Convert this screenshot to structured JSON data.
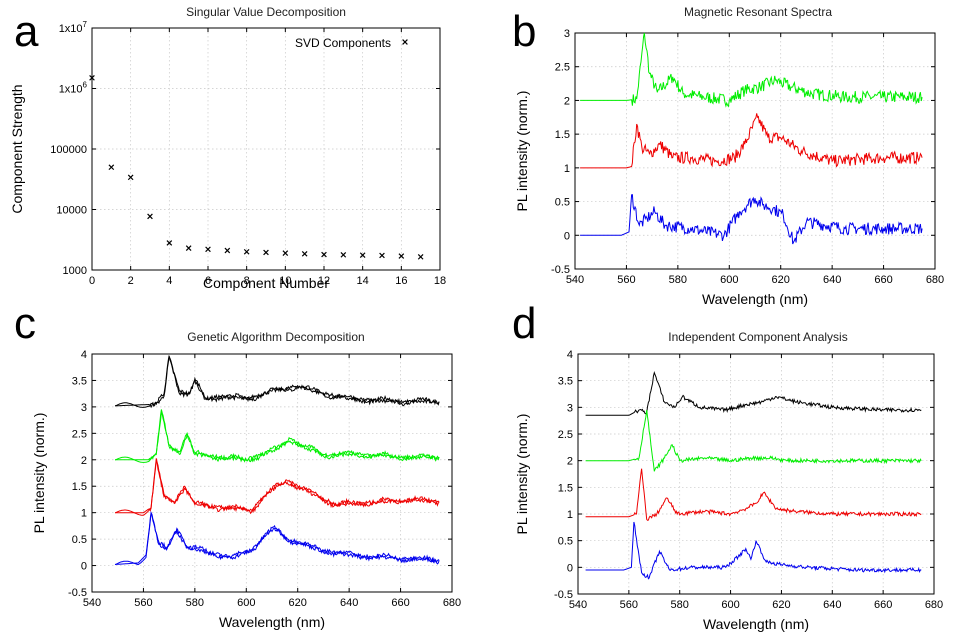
{
  "chart_data": [
    {
      "panel": "a",
      "type": "scatter",
      "title": "Singular Value Decomposition",
      "xlabel": "Component Number",
      "ylabel": "Component Strength",
      "xlim": [
        0,
        18
      ],
      "ylim": [
        1000,
        10000000
      ],
      "yscale": "log",
      "x_ticks": [
        0,
        2,
        4,
        6,
        8,
        10,
        12,
        14,
        16,
        18
      ],
      "y_ticks": [
        1000,
        10000,
        100000,
        1000000,
        10000000
      ],
      "y_tick_labels": [
        "1000",
        "10000",
        "100000",
        "1x10^6",
        "1x10^7"
      ],
      "grid": true,
      "legend_position": "top-right",
      "series": [
        {
          "name": "SVD Components",
          "marker": "x",
          "x": [
            0,
            1,
            2,
            3,
            4,
            5,
            6,
            7,
            8,
            9,
            10,
            11,
            12,
            13,
            14,
            15,
            16,
            17
          ],
          "y": [
            1500000,
            50000,
            34000,
            7700,
            2800,
            2300,
            2200,
            2100,
            2000,
            1950,
            1900,
            1850,
            1800,
            1780,
            1760,
            1740,
            1700,
            1650
          ]
        }
      ]
    },
    {
      "panel": "b",
      "type": "line",
      "title": "Magnetic Resonant Spectra",
      "xlabel": "Wavelength (nm)",
      "ylabel": "PL intensity (norm.)",
      "xlim": [
        540,
        680
      ],
      "ylim": [
        -0.5,
        3
      ],
      "x_ticks": [
        540,
        560,
        580,
        600,
        620,
        640,
        660,
        680
      ],
      "y_ticks": [
        -0.5,
        0,
        0.5,
        1,
        1.5,
        2,
        2.5,
        3
      ],
      "y_tick_labels": [
        "-0.5",
        "0",
        "0.5",
        "1",
        "1.5",
        "2",
        "2.5",
        "3"
      ],
      "grid": true,
      "series": [
        {
          "color": "#00ee00",
          "x": [
            542,
            560,
            564,
            567,
            569,
            572,
            578,
            582,
            590,
            600,
            606,
            612,
            618,
            624,
            632,
            645,
            660,
            675
          ],
          "y": [
            2.0,
            2.0,
            2.02,
            3.0,
            2.4,
            2.12,
            2.35,
            2.1,
            2.05,
            2.0,
            2.15,
            2.2,
            2.3,
            2.2,
            2.1,
            2.05,
            2.05,
            2.05
          ]
        },
        {
          "color": "#ee0000",
          "x": [
            542,
            560,
            562,
            564,
            566,
            569,
            573,
            578,
            585,
            595,
            602,
            606,
            611,
            615,
            620,
            628,
            640,
            660,
            675
          ],
          "y": [
            1.0,
            1.0,
            1.02,
            1.65,
            1.3,
            1.2,
            1.35,
            1.15,
            1.15,
            1.1,
            1.15,
            1.35,
            1.75,
            1.45,
            1.45,
            1.25,
            1.1,
            1.15,
            1.15
          ]
        },
        {
          "color": "#0000ee",
          "x": [
            542,
            558,
            561,
            562,
            565,
            568,
            571,
            575,
            585,
            598,
            604,
            607,
            610,
            613,
            617,
            621,
            625,
            630,
            645,
            660,
            675
          ],
          "y": [
            0.0,
            0.0,
            0.05,
            0.6,
            0.15,
            0.25,
            0.35,
            0.15,
            0.1,
            0.0,
            0.35,
            0.45,
            0.55,
            0.45,
            0.4,
            0.3,
            -0.1,
            0.2,
            0.1,
            0.1,
            0.1
          ]
        }
      ]
    },
    {
      "panel": "c",
      "type": "line",
      "title": "Genetic Algorithm Decomposition",
      "xlabel": "Wavelength (nm)",
      "ylabel": "PL intensity (norm.)",
      "xlim": [
        540,
        680
      ],
      "ylim": [
        -0.5,
        4
      ],
      "x_ticks": [
        540,
        560,
        580,
        600,
        620,
        640,
        660,
        680
      ],
      "y_ticks": [
        -0.5,
        0,
        0.5,
        1,
        1.5,
        2,
        2.5,
        3,
        3.5,
        4
      ],
      "y_tick_labels": [
        "-0.5",
        "0",
        "0.5",
        "1",
        "1.5",
        "2",
        "2.5",
        "3",
        "3.5",
        "4"
      ],
      "grid": true,
      "series": [
        {
          "color": "#000000",
          "x": [
            549,
            565,
            568,
            570,
            574,
            578,
            580,
            584,
            590,
            600,
            610,
            616,
            620,
            626,
            640,
            660,
            675
          ],
          "y": [
            3.02,
            3.05,
            3.2,
            3.95,
            3.3,
            3.25,
            3.5,
            3.15,
            3.2,
            3.15,
            3.3,
            3.35,
            3.4,
            3.3,
            3.15,
            3.1,
            3.1
          ]
        },
        {
          "color": "#00ee00",
          "x": [
            549,
            562,
            565,
            567,
            570,
            574,
            577,
            580,
            590,
            600,
            606,
            612,
            617,
            622,
            630,
            645,
            660,
            675
          ],
          "y": [
            2.0,
            2.0,
            2.1,
            2.9,
            2.25,
            2.15,
            2.5,
            2.1,
            2.05,
            2.0,
            2.1,
            2.2,
            2.4,
            2.25,
            2.1,
            2.1,
            2.05,
            2.05
          ]
        },
        {
          "color": "#ee0000",
          "x": [
            549,
            560,
            563,
            565,
            568,
            572,
            576,
            580,
            590,
            602,
            607,
            612,
            616,
            620,
            626,
            635,
            650,
            665,
            675
          ],
          "y": [
            1.0,
            1.0,
            1.1,
            2.0,
            1.3,
            1.2,
            1.5,
            1.15,
            1.1,
            1.05,
            1.3,
            1.5,
            1.6,
            1.5,
            1.35,
            1.15,
            1.2,
            1.25,
            1.2
          ]
        },
        {
          "color": "#0000ee",
          "x": [
            549,
            558,
            561,
            563,
            566,
            569,
            573,
            577,
            585,
            595,
            602,
            607,
            611,
            616,
            620,
            628,
            640,
            655,
            675
          ],
          "y": [
            0.02,
            0.05,
            0.2,
            1.0,
            0.4,
            0.3,
            0.7,
            0.35,
            0.25,
            0.15,
            0.3,
            0.55,
            0.7,
            0.5,
            0.45,
            0.3,
            0.2,
            0.15,
            0.1
          ]
        }
      ]
    },
    {
      "panel": "d",
      "type": "line",
      "title": "Independent Component Analysis",
      "xlabel": "Wavelength (nm)",
      "ylabel": "PL intensity (norm.)",
      "xlim": [
        540,
        680
      ],
      "ylim": [
        -0.5,
        4
      ],
      "x_ticks": [
        540,
        560,
        580,
        600,
        620,
        640,
        660,
        680
      ],
      "y_ticks": [
        -0.5,
        0,
        0.5,
        1,
        1.5,
        2,
        2.5,
        3,
        3.5,
        4
      ],
      "y_tick_labels": [
        "-0.5",
        "0",
        "0.5",
        "1",
        "1.5",
        "2",
        "2.5",
        "3",
        "3.5",
        "4"
      ],
      "grid": true,
      "series": [
        {
          "color": "#000000",
          "x": [
            543,
            560,
            564,
            567,
            570,
            574,
            578,
            581,
            588,
            598,
            606,
            612,
            618,
            626,
            640,
            660,
            675
          ],
          "y": [
            2.85,
            2.85,
            2.95,
            2.9,
            3.65,
            3.1,
            3.0,
            3.2,
            3.0,
            2.95,
            3.05,
            3.1,
            3.2,
            3.1,
            3.0,
            2.95,
            2.95
          ]
        },
        {
          "color": "#00ee00",
          "x": [
            543,
            560,
            564,
            567,
            570,
            574,
            577,
            580,
            590,
            600,
            608,
            616,
            622,
            640,
            660,
            675
          ],
          "y": [
            2.0,
            2.0,
            2.05,
            2.95,
            1.8,
            2.05,
            2.3,
            2.0,
            2.05,
            2.0,
            2.05,
            2.05,
            2.0,
            2.0,
            2.0,
            2.0
          ]
        },
        {
          "color": "#ee0000",
          "x": [
            543,
            560,
            563,
            565,
            567,
            571,
            575,
            579,
            590,
            600,
            606,
            610,
            613,
            618,
            625,
            640,
            660,
            675
          ],
          "y": [
            0.95,
            0.95,
            1.0,
            1.85,
            0.9,
            1.0,
            1.3,
            1.0,
            1.05,
            1.0,
            1.1,
            1.2,
            1.4,
            1.1,
            1.05,
            1.0,
            1.0,
            1.0
          ]
        },
        {
          "color": "#0000ee",
          "x": [
            543,
            558,
            561,
            562,
            565,
            568,
            572,
            576,
            585,
            598,
            603,
            606,
            608,
            610,
            614,
            620,
            630,
            650,
            675
          ],
          "y": [
            -0.05,
            -0.05,
            0.0,
            0.85,
            -0.1,
            -0.2,
            0.3,
            -0.05,
            0.0,
            0.0,
            0.2,
            0.35,
            0.15,
            0.5,
            0.1,
            0.05,
            0.0,
            -0.05,
            -0.05
          ]
        }
      ]
    }
  ]
}
